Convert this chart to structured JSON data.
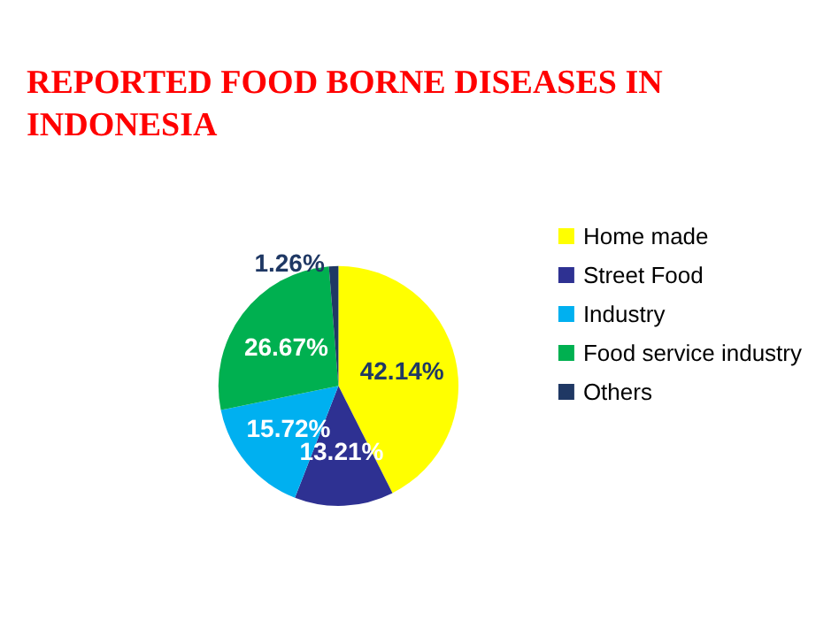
{
  "chart_data": {
    "type": "pie",
    "title": "REPORTED FOOD BORNE DISEASES IN INDONESIA",
    "categories": [
      "Home made",
      "Street Food",
      "Industry",
      "Food service industry",
      "Others"
    ],
    "values": [
      42.14,
      13.21,
      15.72,
      26.67,
      1.26
    ],
    "value_labels": [
      "42.14%",
      "13.21%",
      "15.72%",
      "26.67%",
      "1.26%"
    ],
    "colors": [
      "#ffff00",
      "#2e3192",
      "#00b0f0",
      "#00b050",
      "#1f3864"
    ],
    "legend": "right"
  }
}
